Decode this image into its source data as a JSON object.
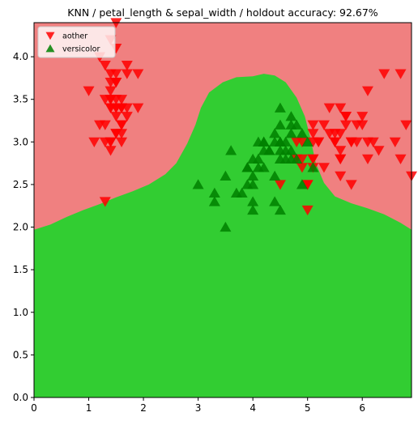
{
  "chart_data": {
    "type": "scatter",
    "title": "KNN / petal_length & sepal_width / holdout accuracy: 92.67%",
    "xlabel": "",
    "ylabel": "",
    "xlim": [
      0,
      6.9
    ],
    "ylim": [
      0,
      4.4
    ],
    "x_ticks": [
      "0",
      "1",
      "2",
      "3",
      "4",
      "5",
      "6"
    ],
    "y_ticks": [
      "0.0",
      "0.5",
      "1.0",
      "1.5",
      "2.0",
      "2.5",
      "3.0",
      "3.5",
      "4.0"
    ],
    "legend_position": "top-left",
    "decision_regions": {
      "aother_color": "#f08080",
      "versicolor_color": "#32cd32",
      "boundary": [
        [
          0,
          1.97
        ],
        [
          0.3,
          2.03
        ],
        [
          0.6,
          2.12
        ],
        [
          0.9,
          2.2
        ],
        [
          1.2,
          2.27
        ],
        [
          1.5,
          2.35
        ],
        [
          1.8,
          2.42
        ],
        [
          2.1,
          2.5
        ],
        [
          2.4,
          2.62
        ],
        [
          2.6,
          2.75
        ],
        [
          2.8,
          2.98
        ],
        [
          2.95,
          3.2
        ],
        [
          3.05,
          3.4
        ],
        [
          3.2,
          3.58
        ],
        [
          3.45,
          3.7
        ],
        [
          3.7,
          3.76
        ],
        [
          4.0,
          3.77
        ],
        [
          4.2,
          3.8
        ],
        [
          4.4,
          3.78
        ],
        [
          4.6,
          3.7
        ],
        [
          4.8,
          3.52
        ],
        [
          4.95,
          3.3
        ],
        [
          5.05,
          3.05
        ],
        [
          5.15,
          2.75
        ],
        [
          5.3,
          2.52
        ],
        [
          5.5,
          2.36
        ],
        [
          5.8,
          2.28
        ],
        [
          6.1,
          2.22
        ],
        [
          6.4,
          2.15
        ],
        [
          6.7,
          2.05
        ],
        [
          6.9,
          1.97
        ]
      ]
    },
    "series": [
      {
        "name": "aother",
        "color": "#ff0000",
        "marker": "triangle-down",
        "points": [
          [
            1.4,
            3.5
          ],
          [
            1.4,
            3.0
          ],
          [
            1.3,
            3.2
          ],
          [
            1.5,
            3.1
          ],
          [
            1.4,
            3.6
          ],
          [
            1.7,
            3.9
          ],
          [
            1.4,
            3.4
          ],
          [
            1.5,
            3.4
          ],
          [
            1.4,
            2.9
          ],
          [
            1.5,
            3.1
          ],
          [
            1.5,
            3.7
          ],
          [
            1.6,
            3.4
          ],
          [
            1.4,
            3.0
          ],
          [
            1.1,
            3.0
          ],
          [
            1.2,
            4.0
          ],
          [
            1.5,
            4.4
          ],
          [
            1.3,
            3.9
          ],
          [
            1.4,
            3.5
          ],
          [
            1.7,
            3.8
          ],
          [
            1.5,
            3.8
          ],
          [
            1.7,
            3.4
          ],
          [
            1.5,
            3.7
          ],
          [
            1.0,
            3.6
          ],
          [
            1.7,
            3.3
          ],
          [
            1.9,
            3.4
          ],
          [
            1.6,
            3.0
          ],
          [
            1.6,
            3.4
          ],
          [
            1.5,
            3.5
          ],
          [
            1.4,
            3.4
          ],
          [
            1.6,
            3.2
          ],
          [
            1.6,
            3.1
          ],
          [
            1.5,
            3.4
          ],
          [
            1.5,
            4.1
          ],
          [
            1.4,
            4.2
          ],
          [
            1.2,
            3.2
          ],
          [
            1.3,
            3.5
          ],
          [
            1.3,
            3.0
          ],
          [
            1.3,
            2.3
          ],
          [
            1.6,
            3.5
          ],
          [
            1.9,
            3.8
          ],
          [
            1.4,
            3.8
          ],
          [
            1.6,
            3.2
          ],
          [
            1.4,
            3.7
          ],
          [
            1.5,
            3.3
          ],
          [
            6.0,
            3.3
          ],
          [
            5.1,
            2.7
          ],
          [
            5.9,
            3.0
          ],
          [
            5.6,
            2.9
          ],
          [
            5.8,
            3.0
          ],
          [
            6.6,
            3.0
          ],
          [
            4.5,
            2.5
          ],
          [
            6.3,
            2.9
          ],
          [
            5.8,
            2.5
          ],
          [
            6.1,
            3.6
          ],
          [
            5.1,
            3.2
          ],
          [
            5.3,
            2.7
          ],
          [
            5.5,
            3.0
          ],
          [
            5.0,
            2.5
          ],
          [
            5.1,
            2.8
          ],
          [
            5.3,
            3.2
          ],
          [
            5.5,
            3.0
          ],
          [
            6.7,
            3.8
          ],
          [
            6.9,
            2.6
          ],
          [
            5.0,
            2.2
          ],
          [
            5.7,
            3.2
          ],
          [
            4.9,
            2.8
          ],
          [
            6.7,
            2.8
          ],
          [
            4.9,
            2.7
          ],
          [
            5.7,
            3.3
          ],
          [
            6.0,
            3.2
          ],
          [
            4.8,
            2.8
          ],
          [
            4.9,
            3.0
          ],
          [
            5.6,
            2.8
          ],
          [
            5.8,
            3.0
          ],
          [
            6.1,
            2.8
          ],
          [
            6.4,
            3.8
          ],
          [
            5.6,
            2.8
          ],
          [
            5.1,
            2.8
          ],
          [
            5.6,
            2.6
          ],
          [
            6.1,
            3.0
          ],
          [
            5.6,
            3.4
          ],
          [
            5.5,
            3.1
          ],
          [
            4.8,
            3.0
          ],
          [
            5.4,
            3.1
          ],
          [
            5.6,
            3.1
          ],
          [
            5.1,
            3.1
          ],
          [
            5.9,
            3.2
          ],
          [
            5.7,
            3.3
          ],
          [
            5.2,
            3.0
          ],
          [
            5.0,
            2.5
          ],
          [
            5.2,
            3.0
          ],
          [
            5.4,
            3.4
          ],
          [
            5.1,
            3.0
          ],
          [
            6.8,
            3.2
          ],
          [
            6.2,
            3.0
          ]
        ]
      },
      {
        "name": "versicolor",
        "color": "#008000",
        "marker": "triangle-up",
        "points": [
          [
            4.7,
            3.2
          ],
          [
            4.5,
            3.2
          ],
          [
            4.9,
            3.1
          ],
          [
            4.0,
            2.3
          ],
          [
            4.6,
            2.8
          ],
          [
            4.5,
            2.8
          ],
          [
            4.7,
            3.3
          ],
          [
            3.3,
            2.4
          ],
          [
            4.6,
            2.9
          ],
          [
            3.9,
            2.7
          ],
          [
            3.5,
            2.0
          ],
          [
            4.2,
            3.0
          ],
          [
            4.0,
            2.2
          ],
          [
            4.7,
            2.9
          ],
          [
            3.6,
            2.9
          ],
          [
            4.4,
            3.1
          ],
          [
            4.5,
            3.0
          ],
          [
            4.1,
            2.7
          ],
          [
            4.5,
            2.2
          ],
          [
            3.9,
            2.5
          ],
          [
            4.8,
            3.2
          ],
          [
            4.0,
            2.8
          ],
          [
            4.9,
            2.5
          ],
          [
            4.7,
            2.8
          ],
          [
            4.3,
            2.9
          ],
          [
            4.4,
            3.0
          ],
          [
            4.8,
            2.8
          ],
          [
            5.0,
            3.0
          ],
          [
            4.5,
            2.9
          ],
          [
            3.5,
            2.6
          ],
          [
            3.8,
            2.4
          ],
          [
            3.7,
            2.4
          ],
          [
            3.9,
            2.7
          ],
          [
            5.1,
            2.7
          ],
          [
            4.5,
            3.0
          ],
          [
            4.5,
            3.4
          ],
          [
            4.7,
            3.1
          ],
          [
            4.4,
            2.3
          ],
          [
            4.1,
            3.0
          ],
          [
            4.0,
            2.5
          ],
          [
            4.4,
            2.6
          ],
          [
            4.6,
            3.0
          ],
          [
            4.0,
            2.6
          ],
          [
            3.3,
            2.3
          ],
          [
            4.2,
            2.7
          ],
          [
            4.2,
            3.0
          ],
          [
            4.2,
            2.9
          ],
          [
            4.3,
            2.9
          ],
          [
            3.0,
            2.5
          ],
          [
            4.1,
            2.8
          ]
        ]
      }
    ]
  }
}
